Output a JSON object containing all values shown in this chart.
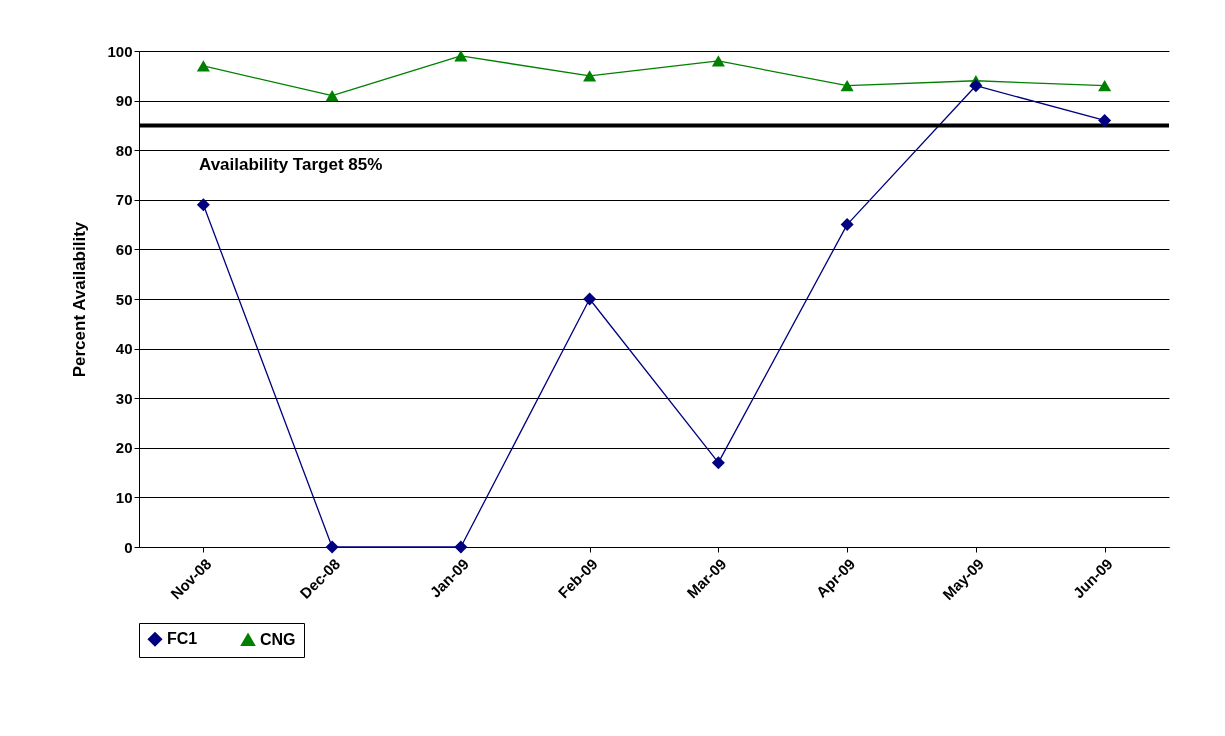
{
  "chart_data": {
    "type": "line",
    "ylabel": "Percent Availability",
    "categories": [
      "Nov-08",
      "Dec-08",
      "Jan-09",
      "Feb-09",
      "Mar-09",
      "Apr-09",
      "May-09",
      "Jun-09"
    ],
    "series": [
      {
        "name": "FC1",
        "color": "#000080",
        "marker": "diamond",
        "values": [
          69,
          0,
          0,
          50,
          17,
          65,
          93,
          86
        ]
      },
      {
        "name": "CNG",
        "color": "#008000",
        "marker": "triangle",
        "values": [
          97,
          91,
          99,
          95,
          98,
          93,
          94,
          93
        ]
      }
    ],
    "ylim": [
      0,
      100
    ],
    "yticks": [
      0,
      10,
      20,
      30,
      40,
      50,
      60,
      70,
      80,
      90,
      100
    ],
    "grid": "y",
    "legend": "bottom",
    "ref_lines": [
      {
        "axis": "y",
        "value": 85,
        "label": "Availability Target 85%",
        "color": "#000000"
      }
    ]
  }
}
